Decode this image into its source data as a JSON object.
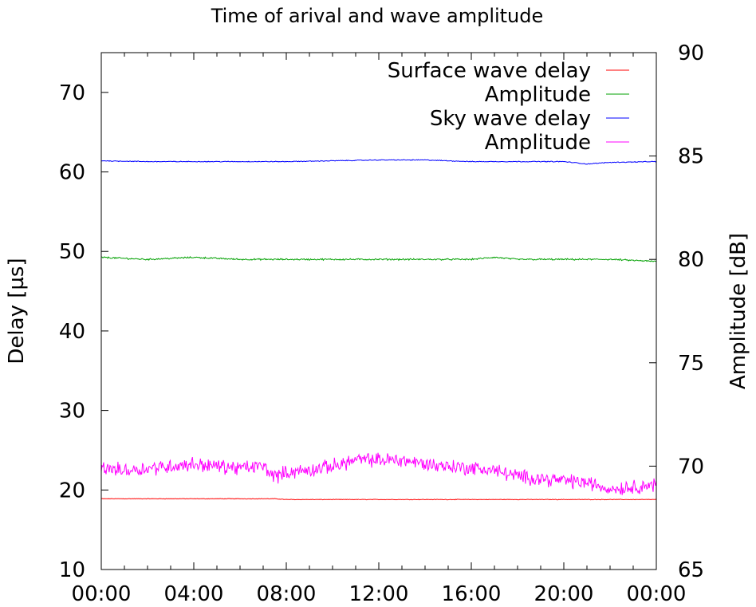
{
  "chart_data": {
    "type": "line",
    "title": "Time of arival and wave amplitude",
    "xlabel": "",
    "ylabel": "Delay [µs]",
    "y2label": "Amplitude [dB]",
    "xlim": [
      0,
      24
    ],
    "ylim": [
      10,
      75
    ],
    "y2lim": [
      65,
      90
    ],
    "x_ticks": [
      "00:00",
      "04:00",
      "08:00",
      "12:00",
      "16:00",
      "20:00",
      "00:00"
    ],
    "y_ticks": [
      "10",
      "20",
      "30",
      "40",
      "50",
      "60",
      "70"
    ],
    "y2_ticks": [
      "65",
      "70",
      "75",
      "80",
      "85",
      "90"
    ],
    "grid": false,
    "legend_position": "top-right",
    "series": [
      {
        "name": "Surface wave delay",
        "axis": "left",
        "color": "#ff0000",
        "x": [
          0,
          2,
          4,
          6,
          7.5,
          8,
          10,
          12,
          14,
          16,
          17,
          18,
          20,
          22,
          24
        ],
        "y": [
          18.9,
          18.9,
          18.9,
          18.9,
          18.9,
          18.8,
          18.8,
          18.8,
          18.8,
          18.8,
          18.8,
          18.8,
          18.8,
          18.8,
          18.8
        ]
      },
      {
        "name": "Amplitude",
        "axis": "right",
        "color": "#00a000",
        "x": [
          0,
          2,
          4,
          6,
          8,
          10,
          12,
          14,
          16,
          17,
          18,
          20,
          22,
          24
        ],
        "y": [
          80.1,
          80.0,
          80.1,
          80.0,
          80.0,
          80.0,
          80.0,
          80.0,
          80.0,
          80.1,
          80.0,
          80.0,
          80.0,
          79.9
        ]
      },
      {
        "name": "Sky wave delay",
        "axis": "left",
        "color": "#0000ff",
        "x": [
          0,
          2,
          4,
          6,
          8,
          10,
          12,
          14,
          16,
          18,
          20,
          21,
          22,
          24
        ],
        "y": [
          61.4,
          61.3,
          61.3,
          61.3,
          61.3,
          61.4,
          61.5,
          61.5,
          61.3,
          61.3,
          61.3,
          61.0,
          61.2,
          61.3
        ]
      },
      {
        "name": "Amplitude",
        "axis": "right",
        "color": "#ff00ff",
        "x": [
          0,
          1,
          2,
          3,
          4,
          5,
          6,
          7,
          7.5,
          8,
          9,
          10,
          11,
          12,
          13,
          14,
          15,
          16,
          17,
          18,
          19,
          20,
          21,
          22,
          23,
          24
        ],
        "y": [
          69.9,
          69.8,
          69.9,
          70.0,
          70.1,
          70.0,
          69.9,
          70.0,
          69.5,
          69.7,
          69.8,
          70.0,
          70.3,
          70.3,
          70.3,
          70.1,
          70.0,
          69.9,
          69.8,
          69.5,
          69.4,
          69.3,
          69.2,
          68.9,
          69.0,
          69.1
        ]
      }
    ]
  }
}
